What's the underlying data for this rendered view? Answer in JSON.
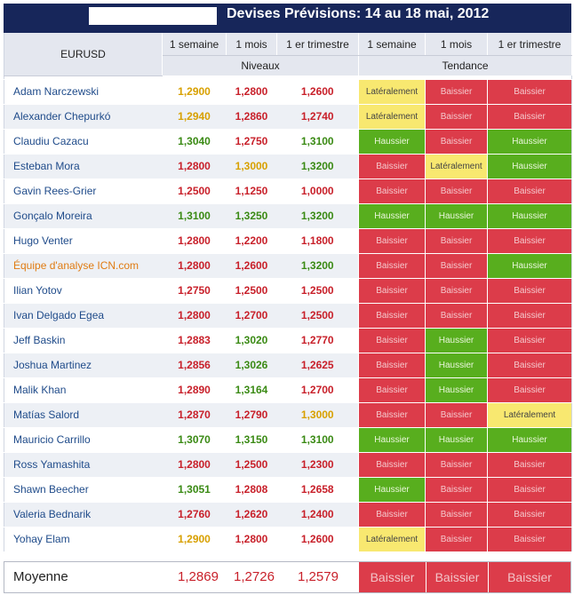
{
  "header": {
    "title": "Devises Prévisions: 14 au 18 mai, 2012"
  },
  "table": {
    "pair": "EURUSD",
    "columns": [
      "1 semaine",
      "1 mois",
      "1 er trimestre",
      "1 semaine",
      "1 mois",
      "1 er trimestre"
    ],
    "group_levels": "Niveaux",
    "group_trend": "Tendance",
    "rows": [
      {
        "name": "Adam Narczewski",
        "levels": [
          "1,2900",
          "1,2800",
          "1,2600"
        ],
        "level_colors": [
          "yellow",
          "red",
          "red"
        ],
        "trends": [
          "Latéralement",
          "Baissier",
          "Baissier"
        ]
      },
      {
        "name": "Alexander Chepurkó",
        "levels": [
          "1,2940",
          "1,2860",
          "1,2740"
        ],
        "level_colors": [
          "yellow",
          "red",
          "red"
        ],
        "trends": [
          "Latéralement",
          "Baissier",
          "Baissier"
        ]
      },
      {
        "name": "Claudiu Cazacu",
        "levels": [
          "1,3040",
          "1,2750",
          "1,3100"
        ],
        "level_colors": [
          "green",
          "red",
          "green"
        ],
        "trends": [
          "Haussier",
          "Baissier",
          "Haussier"
        ]
      },
      {
        "name": "Esteban Mora",
        "levels": [
          "1,2800",
          "1,3000",
          "1,3200"
        ],
        "level_colors": [
          "red",
          "yellow",
          "green"
        ],
        "trends": [
          "Baissier",
          "Latéralement",
          "Haussier"
        ]
      },
      {
        "name": "Gavin Rees-Grier",
        "levels": [
          "1,2500",
          "1,1250",
          "1,0000"
        ],
        "level_colors": [
          "red",
          "red",
          "red"
        ],
        "trends": [
          "Baissier",
          "Baissier",
          "Baissier"
        ]
      },
      {
        "name": "Gonçalo Moreira",
        "levels": [
          "1,3100",
          "1,3250",
          "1,3200"
        ],
        "level_colors": [
          "green",
          "green",
          "green"
        ],
        "trends": [
          "Haussier",
          "Haussier",
          "Haussier"
        ]
      },
      {
        "name": "Hugo Venter",
        "levels": [
          "1,2800",
          "1,2200",
          "1,1800"
        ],
        "level_colors": [
          "red",
          "red",
          "red"
        ],
        "trends": [
          "Baissier",
          "Baissier",
          "Baissier"
        ]
      },
      {
        "name": "Équipe d'analyse ICN.com",
        "levels": [
          "1,2800",
          "1,2600",
          "1,3200"
        ],
        "level_colors": [
          "red",
          "red",
          "green"
        ],
        "trends": [
          "Baissier",
          "Baissier",
          "Haussier"
        ]
      },
      {
        "name": "Ilian Yotov",
        "levels": [
          "1,2750",
          "1,2500",
          "1,2500"
        ],
        "level_colors": [
          "red",
          "red",
          "red"
        ],
        "trends": [
          "Baissier",
          "Baissier",
          "Baissier"
        ]
      },
      {
        "name": "Ivan Delgado Egea",
        "levels": [
          "1,2800",
          "1,2700",
          "1,2500"
        ],
        "level_colors": [
          "red",
          "red",
          "red"
        ],
        "trends": [
          "Baissier",
          "Baissier",
          "Baissier"
        ]
      },
      {
        "name": "Jeff Baskin",
        "levels": [
          "1,2883",
          "1,3020",
          "1,2770"
        ],
        "level_colors": [
          "red",
          "green",
          "red"
        ],
        "trends": [
          "Baissier",
          "Haussier",
          "Baissier"
        ]
      },
      {
        "name": "Joshua Martinez",
        "levels": [
          "1,2856",
          "1,3026",
          "1,2625"
        ],
        "level_colors": [
          "red",
          "green",
          "red"
        ],
        "trends": [
          "Baissier",
          "Haussier",
          "Baissier"
        ]
      },
      {
        "name": "Malik Khan",
        "levels": [
          "1,2890",
          "1,3164",
          "1,2700"
        ],
        "level_colors": [
          "red",
          "green",
          "red"
        ],
        "trends": [
          "Baissier",
          "Haussier",
          "Baissier"
        ]
      },
      {
        "name": "Matías Salord",
        "levels": [
          "1,2870",
          "1,2790",
          "1,3000"
        ],
        "level_colors": [
          "red",
          "red",
          "yellow"
        ],
        "trends": [
          "Baissier",
          "Baissier",
          "Latéralement"
        ]
      },
      {
        "name": "Mauricio Carrillo",
        "levels": [
          "1,3070",
          "1,3150",
          "1,3100"
        ],
        "level_colors": [
          "green",
          "green",
          "green"
        ],
        "trends": [
          "Haussier",
          "Haussier",
          "Haussier"
        ]
      },
      {
        "name": "Ross Yamashita",
        "levels": [
          "1,2800",
          "1,2500",
          "1,2300"
        ],
        "level_colors": [
          "red",
          "red",
          "red"
        ],
        "trends": [
          "Baissier",
          "Baissier",
          "Baissier"
        ]
      },
      {
        "name": "Shawn Beecher",
        "levels": [
          "1,3051",
          "1,2808",
          "1,2658"
        ],
        "level_colors": [
          "green",
          "red",
          "red"
        ],
        "trends": [
          "Haussier",
          "Baissier",
          "Baissier"
        ]
      },
      {
        "name": "Valeria Bednarik",
        "levels": [
          "1,2760",
          "1,2620",
          "1,2400"
        ],
        "level_colors": [
          "red",
          "red",
          "red"
        ],
        "trends": [
          "Baissier",
          "Baissier",
          "Baissier"
        ]
      },
      {
        "name": "Yohay Elam",
        "levels": [
          "1,2900",
          "1,2800",
          "1,2600"
        ],
        "level_colors": [
          "yellow",
          "red",
          "red"
        ],
        "trends": [
          "Latéralement",
          "Baissier",
          "Baissier"
        ]
      }
    ]
  },
  "footer": {
    "label": "Moyenne",
    "averages": [
      "1,2869",
      "1,2726",
      "1,2579"
    ],
    "trends": [
      "Baissier",
      "Baissier",
      "Baissier"
    ]
  },
  "colors": {
    "header_bg": "#17265a",
    "bearish_bg": "#dc3c4a",
    "bullish_bg": "#58ae1e",
    "sideways_bg": "#f8e870",
    "level_red": "#c8202a",
    "level_green": "#3a8a14",
    "level_yellow": "#d8a000"
  }
}
